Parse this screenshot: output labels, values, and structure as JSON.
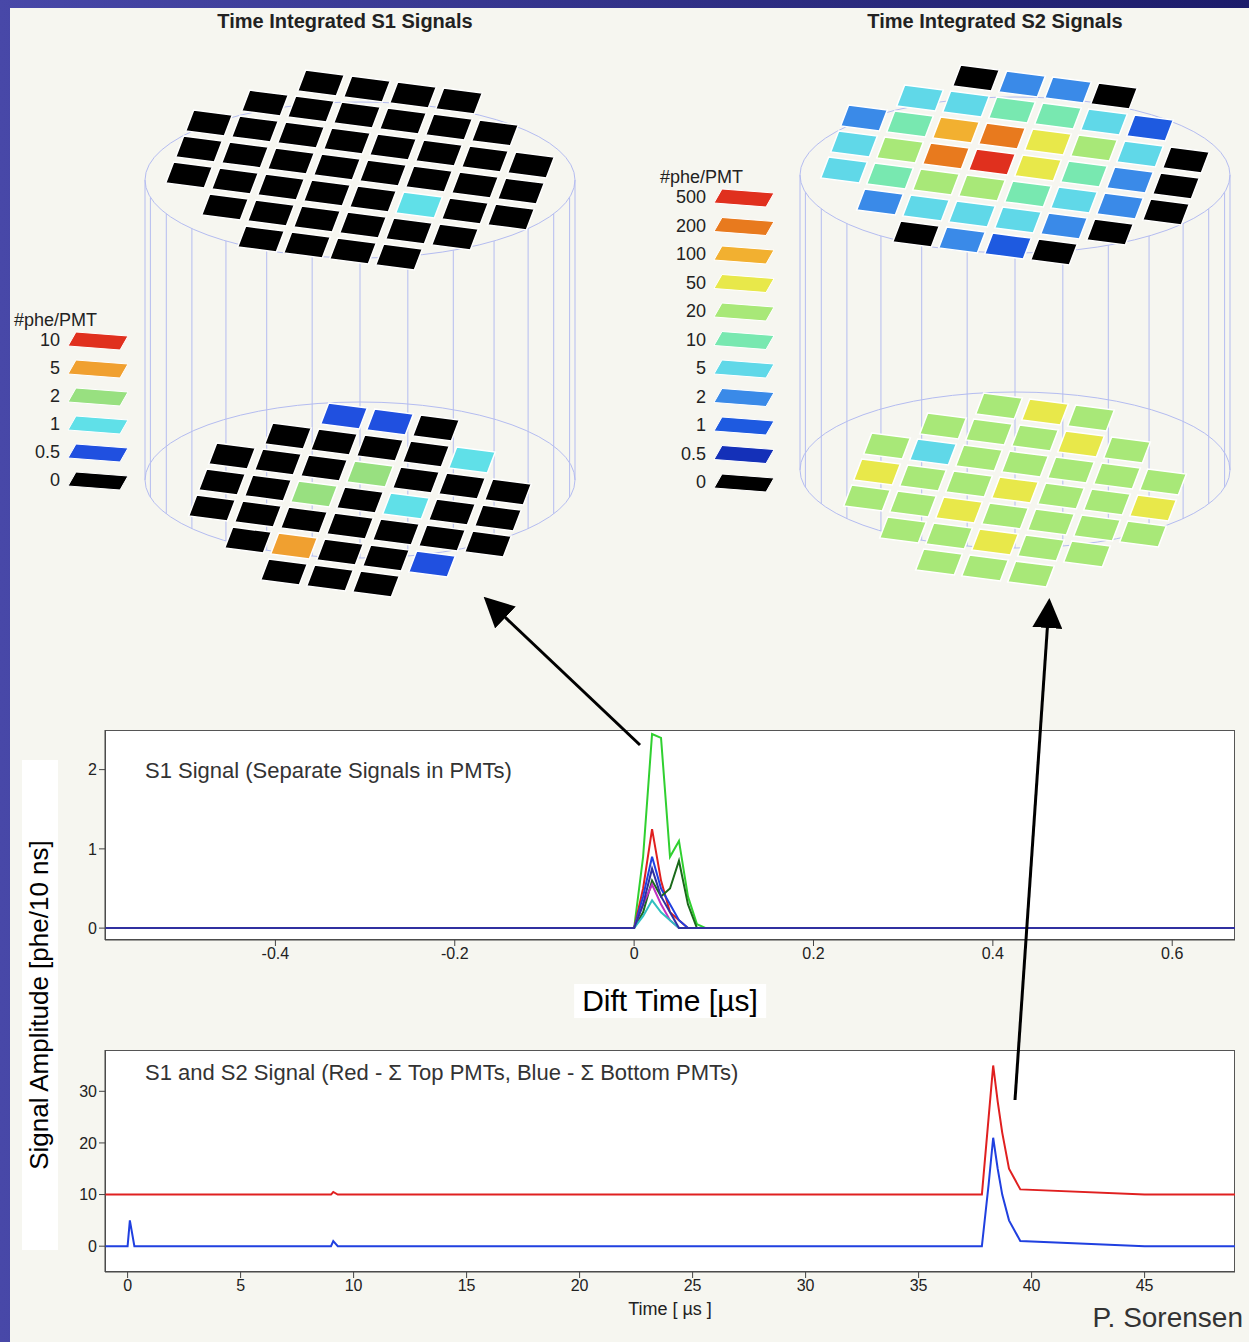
{
  "chart_data": [
    {
      "type": "heatmap",
      "title": "Time Integrated S1 Signals",
      "colorbar_title": "#phe/PMT",
      "colorbar_ticks": [
        0,
        0.5,
        1,
        2,
        5,
        10
      ],
      "colorbar_colors": [
        "#000000",
        "#2050e0",
        "#60e0e8",
        "#98e080",
        "#f0a030",
        "#e0301e"
      ],
      "top_cells": [
        [
          null,
          null,
          0,
          0,
          0,
          0,
          null,
          null
        ],
        [
          null,
          0,
          0,
          0,
          0,
          0,
          0,
          null
        ],
        [
          0,
          0,
          0,
          0,
          0,
          0,
          0,
          0
        ],
        [
          0,
          0,
          0,
          0,
          0,
          0,
          0,
          0
        ],
        [
          0,
          0,
          0,
          0,
          0,
          1,
          0,
          0
        ],
        [
          null,
          0,
          0,
          0,
          0,
          0,
          0,
          null
        ],
        [
          null,
          null,
          0,
          0,
          0,
          0,
          null,
          null
        ]
      ],
      "bottom_cells": [
        [
          null,
          null,
          0.5,
          0.5,
          0,
          null,
          null
        ],
        [
          null,
          0,
          0,
          0,
          0,
          1,
          null
        ],
        [
          0,
          0,
          0,
          2,
          0,
          0,
          0
        ],
        [
          0,
          0,
          2,
          0,
          1,
          0,
          0
        ],
        [
          0,
          0,
          0,
          0,
          0,
          0,
          0
        ],
        [
          null,
          0,
          5,
          0,
          0,
          0.5,
          null
        ],
        [
          null,
          null,
          0,
          0,
          0,
          null,
          null
        ]
      ]
    },
    {
      "type": "heatmap",
      "title": "Time Integrated S2 Signals",
      "colorbar_title": "#phe/PMT",
      "colorbar_ticks": [
        0,
        0.5,
        1,
        2,
        5,
        10,
        20,
        50,
        100,
        200,
        500
      ],
      "colorbar_colors": [
        "#000000",
        "#1430b8",
        "#1e5ae0",
        "#3a8ae8",
        "#60d8e8",
        "#78e8b0",
        "#a8e878",
        "#e8e84a",
        "#f2b030",
        "#e87a1e",
        "#e0301e"
      ],
      "top_cells": [
        [
          null,
          null,
          0,
          2,
          2,
          0,
          null,
          null
        ],
        [
          null,
          5,
          5,
          10,
          10,
          5,
          1,
          null
        ],
        [
          2,
          10,
          100,
          200,
          50,
          20,
          5,
          0
        ],
        [
          5,
          20,
          200,
          500,
          50,
          10,
          2,
          0
        ],
        [
          5,
          10,
          20,
          20,
          10,
          5,
          2,
          0
        ],
        [
          null,
          2,
          5,
          5,
          5,
          2,
          0,
          null
        ],
        [
          null,
          null,
          0,
          2,
          1,
          0,
          null,
          null
        ]
      ],
      "bottom_cells": [
        [
          null,
          null,
          20,
          50,
          20,
          null,
          null
        ],
        [
          null,
          20,
          20,
          20,
          50,
          20,
          null
        ],
        [
          20,
          5,
          20,
          20,
          20,
          20,
          20
        ],
        [
          50,
          20,
          20,
          50,
          20,
          20,
          50
        ],
        [
          20,
          20,
          50,
          20,
          20,
          20,
          20
        ],
        [
          null,
          20,
          20,
          50,
          20,
          20,
          null
        ],
        [
          null,
          null,
          20,
          20,
          20,
          null,
          null
        ]
      ]
    },
    {
      "type": "line",
      "title": "S1 Signal (Separate Signals in PMTs)",
      "xlabel": "Dift Time [µs]",
      "x": [
        -0.59,
        -0.4,
        -0.2,
        0,
        0.01,
        0.02,
        0.03,
        0.04,
        0.05,
        0.06,
        0.07,
        0.08,
        0.2,
        0.4,
        0.6,
        0.67
      ],
      "series": [
        {
          "color": "#30d030",
          "values": [
            0,
            0,
            0,
            0,
            0.9,
            2.45,
            2.4,
            0.9,
            1.1,
            0.4,
            0.05,
            0,
            0,
            0,
            0,
            0
          ]
        },
        {
          "color": "#e02020",
          "values": [
            0,
            0,
            0,
            0,
            0.5,
            1.25,
            0.6,
            0.2,
            0.1,
            0,
            0,
            0,
            0,
            0,
            0,
            0
          ]
        },
        {
          "color": "#2040e0",
          "values": [
            0,
            0,
            0,
            0,
            0.4,
            0.9,
            0.5,
            0.3,
            0.1,
            0,
            0,
            0,
            0,
            0,
            0,
            0
          ]
        },
        {
          "color": "#1a6a1a",
          "values": [
            0,
            0,
            0,
            0,
            0.2,
            0.6,
            0.4,
            0.5,
            0.85,
            0.3,
            0,
            0,
            0,
            0,
            0,
            0
          ]
        },
        {
          "color": "#c030c0",
          "values": [
            0,
            0,
            0,
            0,
            0.3,
            0.55,
            0.3,
            0.1,
            0,
            0,
            0,
            0,
            0,
            0,
            0,
            0
          ]
        },
        {
          "color": "#30c0c0",
          "values": [
            0,
            0,
            0,
            0,
            0.15,
            0.35,
            0.2,
            0.1,
            0,
            0,
            0,
            0,
            0,
            0,
            0,
            0
          ]
        },
        {
          "color": "#3030a0",
          "values": [
            0,
            0,
            0,
            0,
            0.3,
            0.75,
            0.4,
            0.2,
            0,
            0,
            0,
            0,
            0,
            0,
            0,
            0
          ]
        }
      ],
      "xlim": [
        -0.59,
        0.67
      ],
      "xticks": [
        -0.4,
        -0.2,
        0,
        0.2,
        0.4,
        0.6
      ],
      "ylim": [
        -0.15,
        2.5
      ],
      "yticks": [
        0,
        1,
        2
      ]
    },
    {
      "type": "line",
      "title": "S1 and S2 Signal (Red - Σ Top PMTs, Blue - Σ Bottom PMTs)",
      "xlabel": "Time [ µs ]",
      "x": [
        -1,
        0,
        0.1,
        0.3,
        5,
        9,
        9.1,
        9.3,
        20,
        37.8,
        38.1,
        38.3,
        38.5,
        38.7,
        39,
        39.5,
        45,
        49
      ],
      "series": [
        {
          "color": "#e02020",
          "values": [
            10,
            10,
            10,
            10,
            10,
            10,
            10.5,
            10,
            10,
            10,
            25,
            35,
            28,
            22,
            15,
            11,
            10,
            10
          ]
        },
        {
          "color": "#2040e0",
          "values": [
            0,
            0,
            5,
            0,
            0,
            0,
            1,
            0,
            0,
            0,
            12,
            21,
            15,
            10,
            5,
            1,
            0,
            0
          ]
        }
      ],
      "xlim": [
        -1,
        49
      ],
      "xticks": [
        0,
        5,
        10,
        15,
        20,
        25,
        30,
        35,
        40,
        45
      ],
      "ylim": [
        -5,
        38
      ],
      "yticks": [
        0,
        10,
        20,
        30
      ]
    }
  ],
  "ylabel": "Signal Amplitude [phe/10 ns]",
  "credit": "P. Sorensen"
}
